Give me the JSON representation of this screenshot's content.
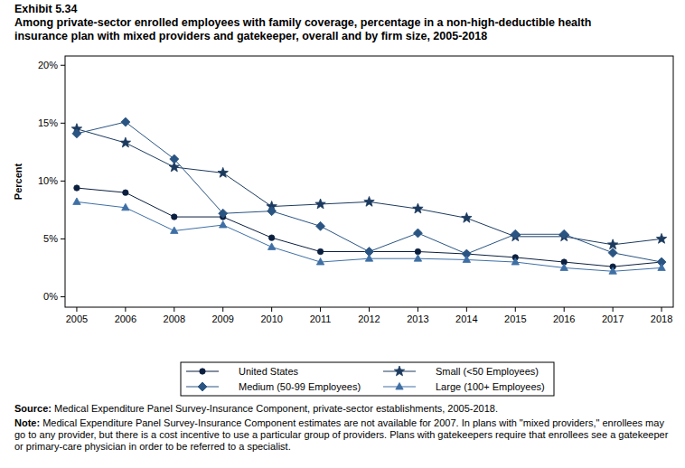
{
  "chart_data": {
    "type": "line",
    "title": "Exhibit 5.34",
    "subtitle": "Among private-sector enrolled employees with family coverage, percentage in a non-high-deductible health insurance plan with mixed providers and gatekeeper, overall and by firm size, 2005-2018",
    "y_label": "Percent",
    "source_label": "Source:",
    "source": "Medical Expenditure Panel Survey-Insurance Component, private-sector establishments, 2005-2018.",
    "note_label": "Note:",
    "note": "Medical Expenditure Panel Survey-Insurance Component estimates are not available for 2007. In plans with \"mixed providers,\" enrollees may go to any provider, but there is a cost incentive to use a particular group of providers. Plans with gatekeepers require that enrollees see a gatekeeper or primary-care physician in order to be referred to a specialist.",
    "categories": [
      "2005",
      "2006",
      "2008",
      "2009",
      "2010",
      "2011",
      "2012",
      "2013",
      "2014",
      "2015",
      "2016",
      "2017",
      "2018"
    ],
    "series": [
      {
        "name": "United States",
        "color": "#0b1f3f",
        "marker": "circle",
        "values": [
          9.4,
          9.0,
          6.9,
          6.9,
          5.1,
          3.9,
          3.9,
          3.9,
          3.7,
          3.4,
          3.0,
          2.6,
          3.0
        ]
      },
      {
        "name": "Small (<50 Employees)",
        "color": "#1c3a5e",
        "marker": "star",
        "values": [
          14.5,
          13.3,
          11.2,
          10.7,
          7.8,
          8.0,
          8.2,
          7.6,
          6.8,
          5.2,
          5.2,
          4.5,
          5.0
        ]
      },
      {
        "name": "Medium (50-99 Employees)",
        "color": "#2a5482",
        "marker": "diamond",
        "values": [
          14.1,
          15.1,
          11.9,
          7.2,
          7.4,
          6.1,
          3.9,
          5.5,
          3.7,
          5.4,
          5.4,
          3.8,
          3.0
        ]
      },
      {
        "name": "Large (100+ Employees)",
        "color": "#3e6fa5",
        "marker": "triangle",
        "values": [
          8.2,
          7.7,
          5.7,
          6.2,
          4.3,
          3.0,
          3.3,
          3.3,
          3.2,
          3.0,
          2.5,
          2.2,
          2.5
        ]
      }
    ],
    "ylim": [
      -0.9,
      20.8
    ],
    "yticks": [
      {
        "value": 0,
        "label": "0%"
      },
      {
        "value": 5,
        "label": "5%"
      },
      {
        "value": 10,
        "label": "10%"
      },
      {
        "value": 15,
        "label": "15%"
      },
      {
        "value": 20,
        "label": "20%"
      }
    ],
    "grid": false,
    "legend": "bottom"
  }
}
